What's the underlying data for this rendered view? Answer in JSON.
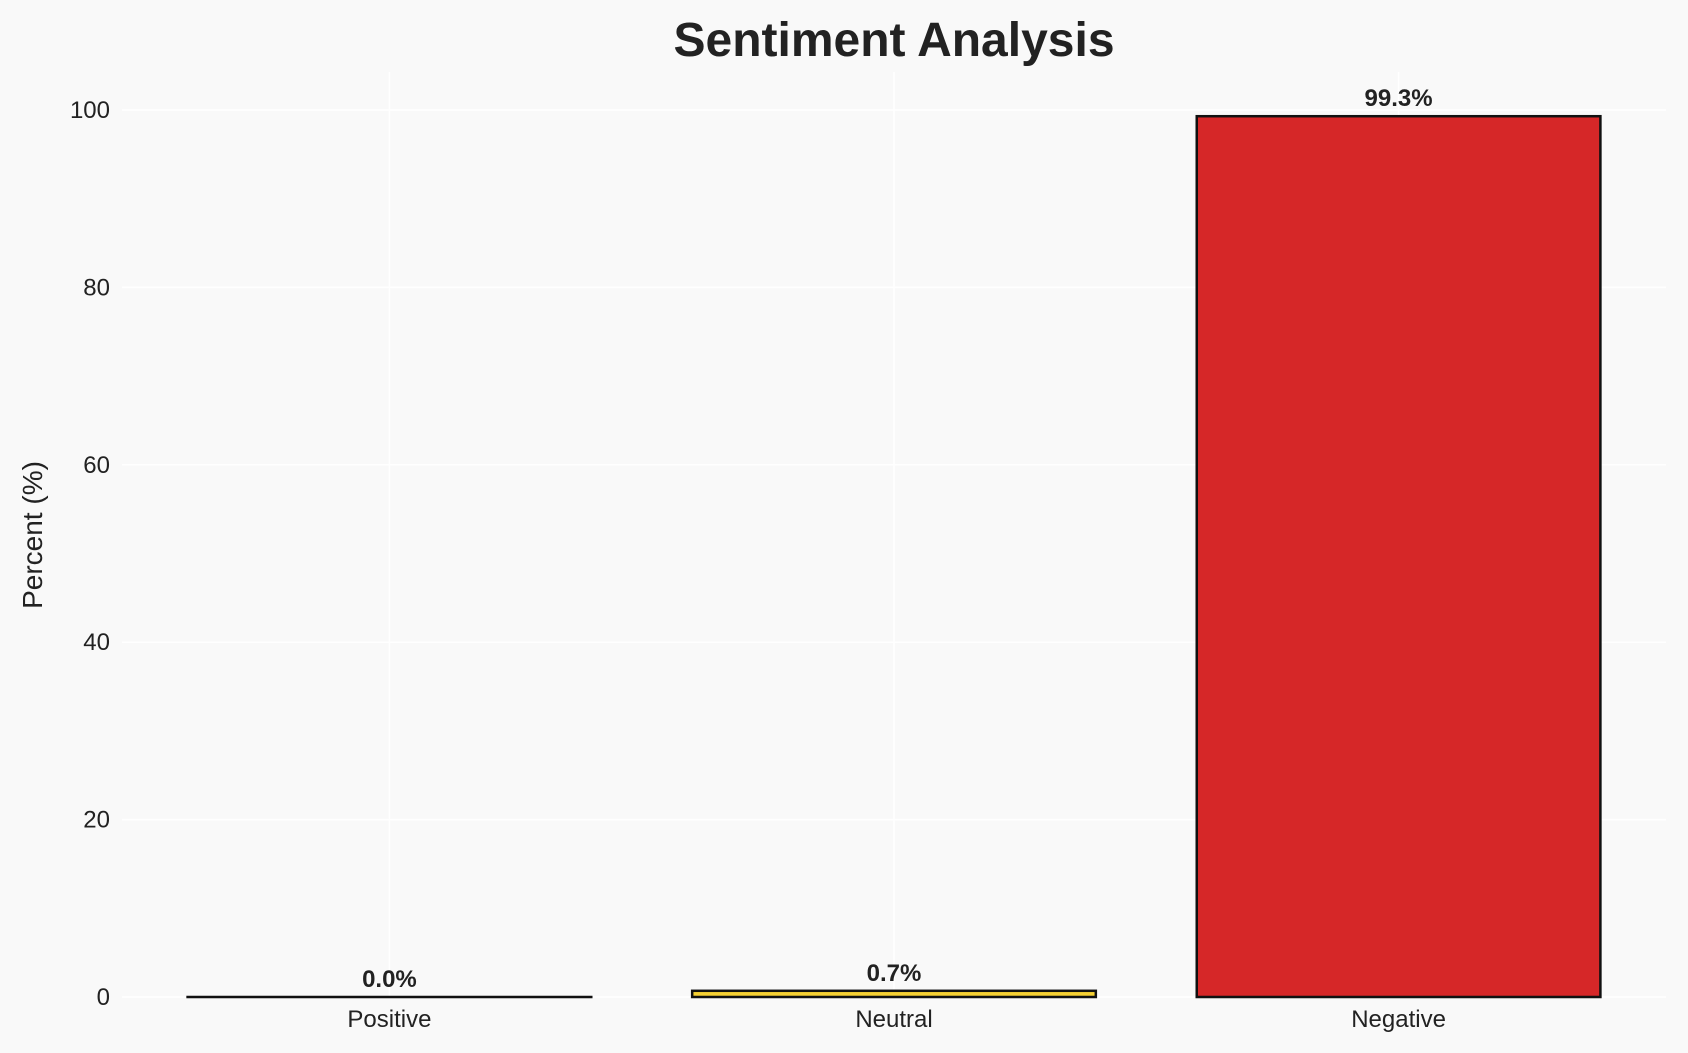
{
  "chart_data": {
    "type": "bar",
    "title": "Sentiment Analysis",
    "xlabel": "",
    "ylabel": "Percent (%)",
    "categories": [
      "Positive",
      "Neutral",
      "Negative"
    ],
    "values": [
      0.0,
      0.7,
      99.3
    ],
    "data_labels": [
      "0.0%",
      "0.7%",
      "99.3%"
    ],
    "colors": [
      "#2ca02c",
      "#f5d033",
      "#d62728"
    ],
    "ylim": [
      0,
      104
    ],
    "yticks": [
      0,
      20,
      40,
      60,
      80,
      100
    ],
    "grid": true,
    "background": "#f9f9f9"
  }
}
